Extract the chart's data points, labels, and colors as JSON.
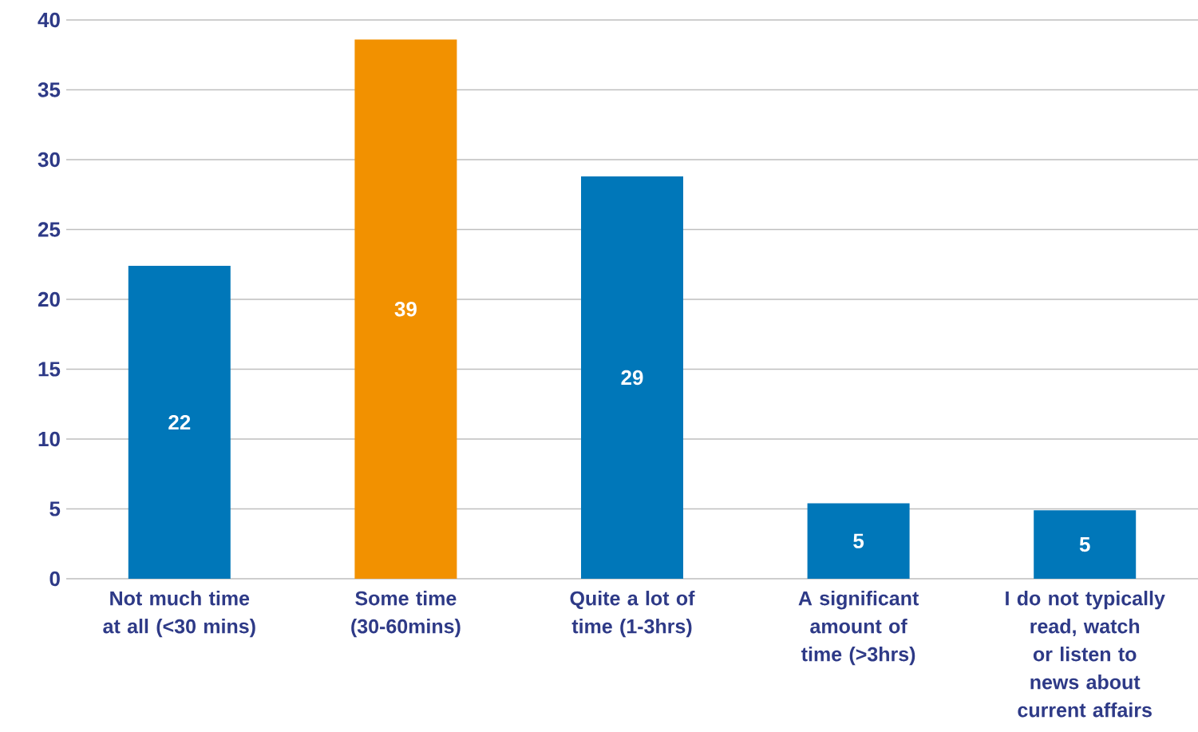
{
  "chart_data": {
    "type": "bar",
    "categories": [
      "Not much time at all (<30 mins)",
      "Some time (30-60mins)",
      "Quite a lot of time (1-3hrs)",
      "A significant amount of time (>3hrs)",
      "I do not typically read, watch or listen to news about current affairs"
    ],
    "values": [
      22.4,
      38.6,
      28.8,
      5.4,
      4.9
    ],
    "value_labels": [
      "22",
      "39",
      "29",
      "5",
      "5"
    ],
    "colors": [
      "#0077b9",
      "#f29100",
      "#0077b9",
      "#0077b9",
      "#0077b9"
    ],
    "ylim": [
      0,
      40
    ],
    "yticks": [
      0,
      5,
      10,
      15,
      20,
      25,
      30,
      35,
      40
    ],
    "grid": "y"
  }
}
